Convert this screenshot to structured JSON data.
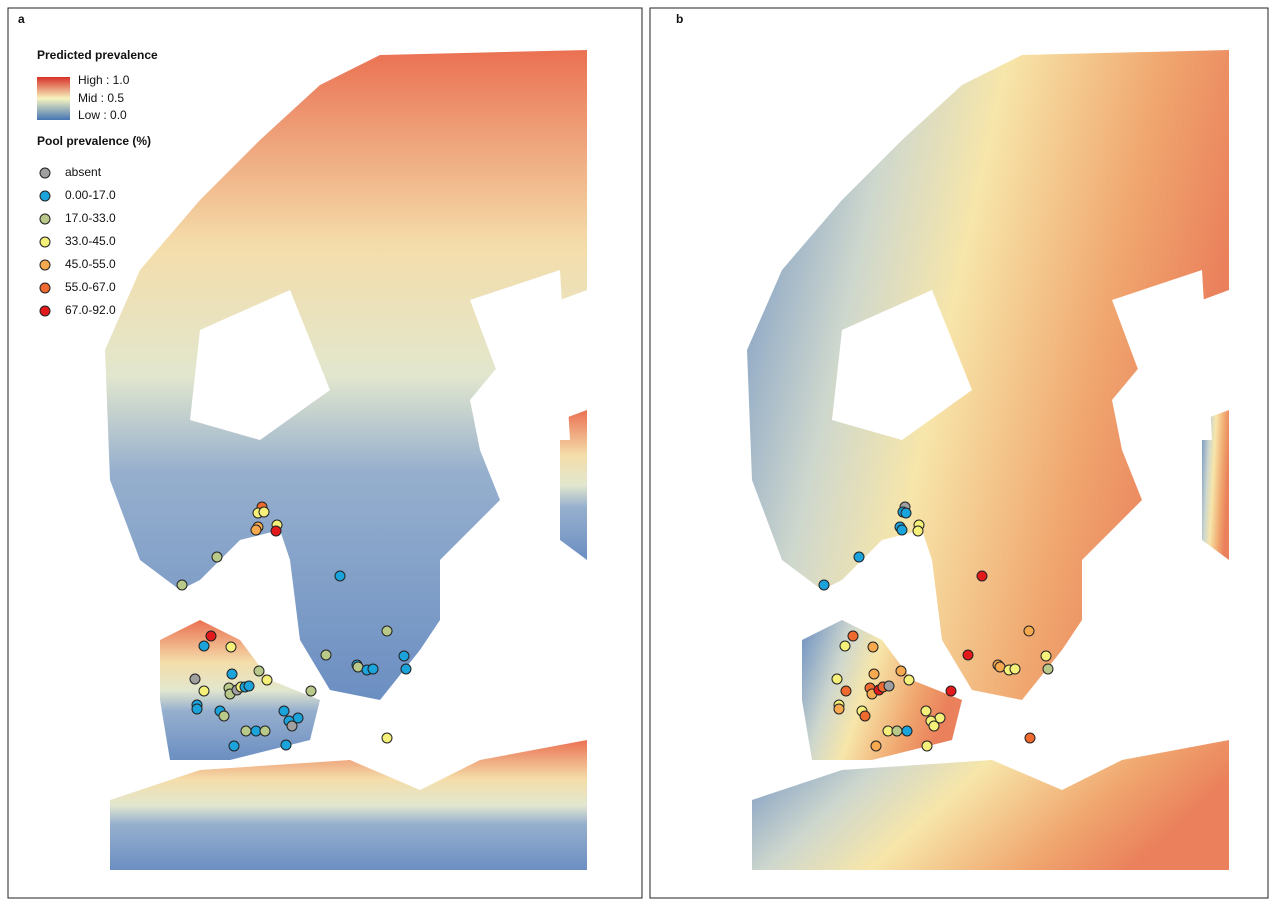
{
  "panels": [
    {
      "label": "a"
    },
    {
      "label": "b"
    }
  ],
  "legend": {
    "raster_title": "Predicted prevalence",
    "raster_labels": [
      "High : 1.0",
      "Mid : 0.5",
      "Low : 0.0"
    ],
    "raster_colors": [
      "#d73027",
      "#f7f4c0",
      "#4575b4"
    ],
    "points_title": "Pool prevalence (%)",
    "classes": [
      {
        "label": "absent",
        "color": "#a0a0a0"
      },
      {
        "label": "0.00-17.0",
        "color": "#1ba3dc"
      },
      {
        "label": "17.0-33.0",
        "color": "#b9c98a"
      },
      {
        "label": "33.0-45.0",
        "color": "#f5f07a"
      },
      {
        "label": "45.0-55.0",
        "color": "#f6a94e"
      },
      {
        "label": "55.0-67.0",
        "color": "#ee6a2e"
      },
      {
        "label": "67.0-92.0",
        "color": "#e31a1c"
      }
    ]
  }
}
